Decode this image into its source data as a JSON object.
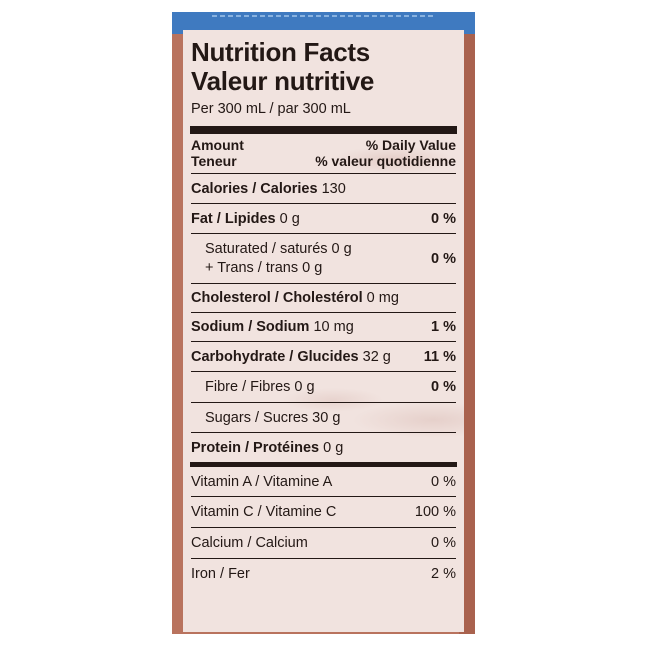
{
  "label": {
    "title_en": "Nutrition Facts",
    "title_fr": "Valeur nutritive",
    "serving": "Per 300 mL / par 300 mL",
    "header": {
      "amount": "Amount",
      "daily_value": "% Daily Value",
      "teneur": "Teneur",
      "valeur_quotidienne": "% valeur quotidienne"
    },
    "calories": {
      "name": "Calories / Calories",
      "amount": "130"
    },
    "fat": {
      "name": "Fat / Lipides",
      "amount": "0 g",
      "dv": "0 %"
    },
    "saturated": {
      "line1": "Saturated / saturés 0 g",
      "line2": "+ Trans / trans 0 g",
      "dv": "0 %"
    },
    "cholesterol": {
      "name": "Cholesterol / Cholestérol",
      "amount": "0 mg"
    },
    "sodium": {
      "name": "Sodium / Sodium",
      "amount": "10 mg",
      "dv": "1 %"
    },
    "carbohydrate": {
      "name": "Carbohydrate / Glucides",
      "amount": "32 g",
      "dv": "11 %"
    },
    "fibre": {
      "name": "Fibre / Fibres 0 g",
      "dv": "0 %"
    },
    "sugars": {
      "name": "Sugars / Sucres 30 g"
    },
    "protein": {
      "name": "Protein / Protéines",
      "amount": "0 g"
    },
    "vitamins": [
      {
        "name": "Vitamin A / Vitamine A",
        "dv": "0 %"
      },
      {
        "name": "Vitamin C / Vitamine C",
        "dv": "100 %"
      },
      {
        "name": "Calcium / Calcium",
        "dv": "0 %"
      },
      {
        "name": "Iron / Fer",
        "dv": "2 %"
      }
    ]
  }
}
